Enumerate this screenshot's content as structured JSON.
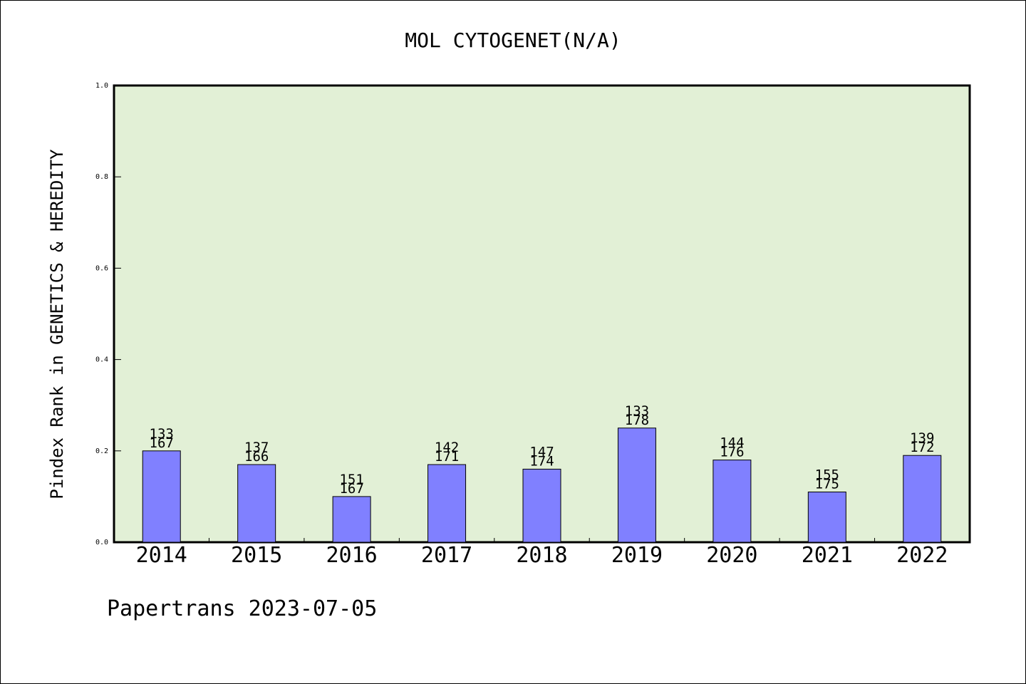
{
  "chart_data": {
    "type": "bar",
    "title": "MOL CYTOGENET(N/A)",
    "xlabel": "",
    "ylabel": "Pindex Rank in GENETICS & HEREDITY",
    "ylim": [
      0.0,
      1.0
    ],
    "yticks": [
      "0.0",
      "0.2",
      "0.4",
      "0.6",
      "0.8",
      "1.0"
    ],
    "grid": false,
    "categories": [
      "2014",
      "2015",
      "2016",
      "2017",
      "2018",
      "2019",
      "2020",
      "2021",
      "2022"
    ],
    "values": [
      0.2,
      0.17,
      0.1,
      0.17,
      0.16,
      0.25,
      0.18,
      0.11,
      0.19
    ],
    "labels_top": [
      "133",
      "137",
      "151",
      "142",
      "147",
      "133",
      "144",
      "155",
      "139"
    ],
    "labels_bottom": [
      "167",
      "166",
      "167",
      "171",
      "174",
      "178",
      "176",
      "175",
      "172"
    ],
    "colors": {
      "bar": "#8080ff",
      "plot_background": "#e2f0d6"
    }
  },
  "footer": "Papertrans 2023-07-05"
}
